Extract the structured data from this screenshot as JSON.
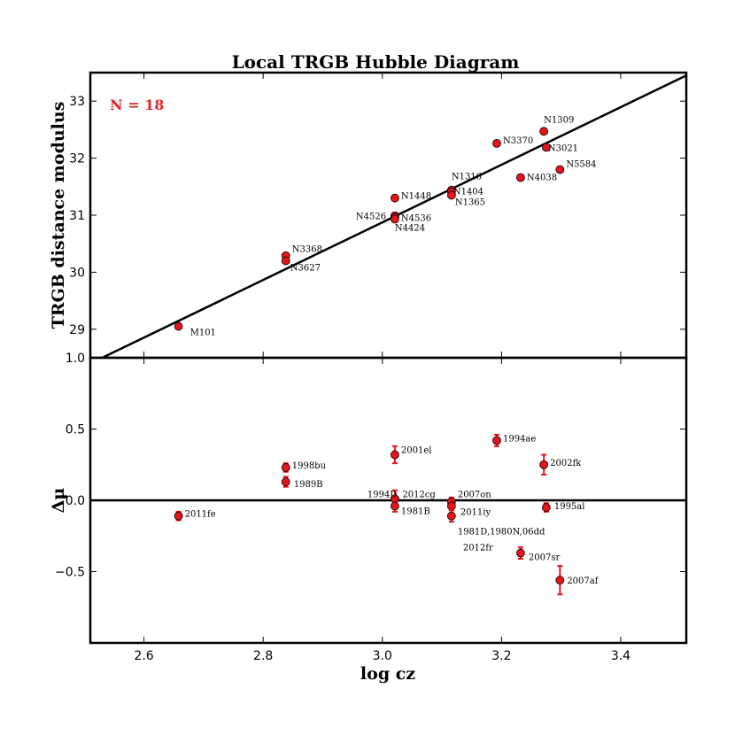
{
  "chart_data": [
    {
      "type": "scatter",
      "title": "Local TRGB Hubble Diagram",
      "xlabel": "",
      "ylabel": "TRGB distance modulus",
      "xlim": [
        2.51,
        3.51
      ],
      "ylim": [
        28.5,
        33.5
      ],
      "yticks": [
        29,
        30,
        31,
        32,
        33
      ],
      "annotation": "N = 18",
      "annotation_color": "#e0262b",
      "fit_line": {
        "x": [
          2.53,
          3.51
        ],
        "y": [
          28.5,
          33.45
        ]
      },
      "points": [
        {
          "label": "M101",
          "x": 2.658,
          "y": 29.05
        },
        {
          "label": "N3368",
          "x": 2.838,
          "y": 30.29
        },
        {
          "label": "N3627",
          "x": 2.838,
          "y": 30.2
        },
        {
          "label": "N1448",
          "x": 3.021,
          "y": 31.3
        },
        {
          "label": "N4526",
          "x": 3.021,
          "y": 30.99
        },
        {
          "label": "N4536",
          "x": 3.021,
          "y": 30.96
        },
        {
          "label": "N4424",
          "x": 3.021,
          "y": 30.93
        },
        {
          "label": "N1316",
          "x": 3.116,
          "y": 31.44
        },
        {
          "label": "N1404",
          "x": 3.116,
          "y": 31.41
        },
        {
          "label": "N1365",
          "x": 3.116,
          "y": 31.35
        },
        {
          "label": "N3370",
          "x": 3.192,
          "y": 32.26
        },
        {
          "label": "N1309",
          "x": 3.271,
          "y": 32.47
        },
        {
          "label": "N3021",
          "x": 3.275,
          "y": 32.19
        },
        {
          "label": "N4038",
          "x": 3.232,
          "y": 31.66
        },
        {
          "label": "N5584",
          "x": 3.298,
          "y": 31.8
        }
      ]
    },
    {
      "type": "scatter",
      "title": "",
      "xlabel": "log cz",
      "ylabel": "Δμ",
      "xlim": [
        2.51,
        3.51
      ],
      "ylim": [
        -1.0,
        1.0
      ],
      "xticks": [
        2.6,
        2.8,
        3.0,
        3.2,
        3.4
      ],
      "xtick_labels": [
        "2.6",
        "2.8",
        "3.0",
        "3.2",
        "3.4"
      ],
      "yticks": [
        -0.5,
        0.0,
        0.5,
        1.0
      ],
      "ytick_labels": [
        "−0.5",
        "0.0",
        "0.5",
        "1.0"
      ],
      "zero_line": 0.0,
      "points": [
        {
          "label": "2011fe",
          "x": 2.658,
          "y": -0.11,
          "err": 0.03
        },
        {
          "label": "1998bu",
          "x": 2.838,
          "y": 0.23,
          "err": 0.03
        },
        {
          "label": "1989B",
          "x": 2.838,
          "y": 0.13,
          "err": 0.035
        },
        {
          "label": "2001el",
          "x": 3.021,
          "y": 0.32,
          "err": 0.06
        },
        {
          "label": "1994D, 2012cg",
          "x": 3.021,
          "y": 0.01,
          "err": 0.06
        },
        {
          "label": "1981B",
          "x": 3.021,
          "y": -0.04,
          "err": 0.04
        },
        {
          "label": "2007on",
          "x": 3.116,
          "y": -0.01,
          "err": 0.03
        },
        {
          "label": "2011iy",
          "x": 3.116,
          "y": -0.04,
          "err": 0.03
        },
        {
          "label": "1981D,1980N,06dd",
          "x": 3.116,
          "y": -0.11,
          "err": 0.04
        },
        {
          "label": "2012fr",
          "x": 3.116,
          "y": -0.11,
          "err": 0.0
        },
        {
          "label": "1994ae",
          "x": 3.192,
          "y": 0.42,
          "err": 0.04
        },
        {
          "label": "2002fk",
          "x": 3.271,
          "y": 0.25,
          "err": 0.07
        },
        {
          "label": "1995al",
          "x": 3.275,
          "y": -0.05,
          "err": 0.03
        },
        {
          "label": "2007sr",
          "x": 3.232,
          "y": -0.37,
          "err": 0.04
        },
        {
          "label": "2007af",
          "x": 3.298,
          "y": -0.56,
          "err": 0.1
        }
      ]
    }
  ]
}
